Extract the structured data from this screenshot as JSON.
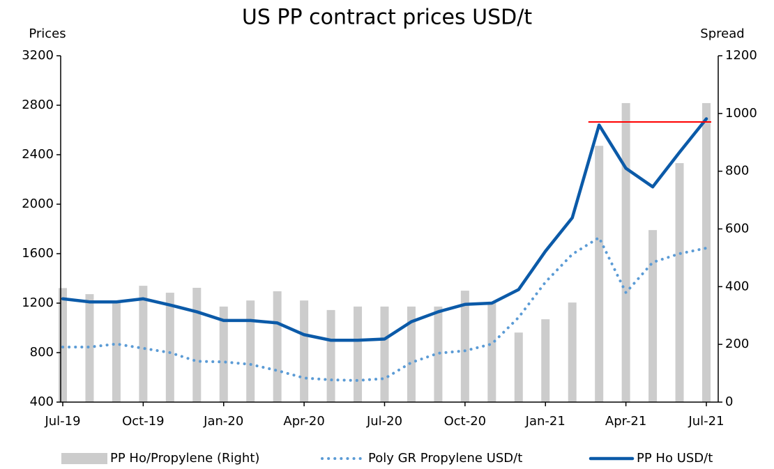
{
  "chart_data": {
    "type": "combo",
    "title": "US PP contract prices USD/t",
    "ylabel": "Prices",
    "y2label": "Spread",
    "categories": [
      "Jul-19",
      null,
      null,
      "Oct-19",
      null,
      null,
      "Jan-20",
      null,
      null,
      "Apr-20",
      null,
      null,
      "Jul-20",
      null,
      null,
      "Oct-20",
      null,
      null,
      "Jan-21",
      null,
      null,
      "Apr-21",
      null,
      null,
      "Jul-21"
    ],
    "ylim": [
      400,
      3200
    ],
    "yticks": [
      400,
      800,
      1200,
      1600,
      2000,
      2400,
      2800,
      3200
    ],
    "y2lim": [
      0,
      1200
    ],
    "y2ticks": [
      0,
      200,
      400,
      600,
      800,
      1000,
      1200
    ],
    "series": [
      {
        "name": "PP Ho/Propylene (Right)",
        "type": "bar",
        "axis": "y2",
        "color": "#cccccc",
        "values": [
          395,
          374,
          348,
          403,
          379,
          396,
          331,
          352,
          384,
          352,
          319,
          331,
          331,
          331,
          331,
          386,
          348,
          241,
          287,
          345,
          888,
          1036,
          596,
          828,
          1036
        ]
      },
      {
        "name": "Poly GR Propylene USD/t",
        "type": "line",
        "dash": "dotted",
        "color": "#5b9bd5",
        "values": [
          845,
          845,
          870,
          835,
          800,
          730,
          725,
          705,
          655,
          595,
          580,
          575,
          590,
          720,
          795,
          815,
          870,
          1085,
          1370,
          1595,
          1730,
          1285,
          1530,
          1600,
          1645
        ]
      },
      {
        "name": "PP Ho USD/t",
        "type": "line",
        "dash": "solid",
        "color": "#0b5aa8",
        "values": [
          1235,
          1210,
          1210,
          1235,
          1185,
          1130,
          1060,
          1060,
          1040,
          945,
          900,
          900,
          910,
          1050,
          1130,
          1190,
          1200,
          1310,
          1620,
          1890,
          2640,
          2290,
          2140,
          2420,
          2690
        ]
      }
    ],
    "reference_line": {
      "value": 2665,
      "color": "#ff0000"
    }
  }
}
